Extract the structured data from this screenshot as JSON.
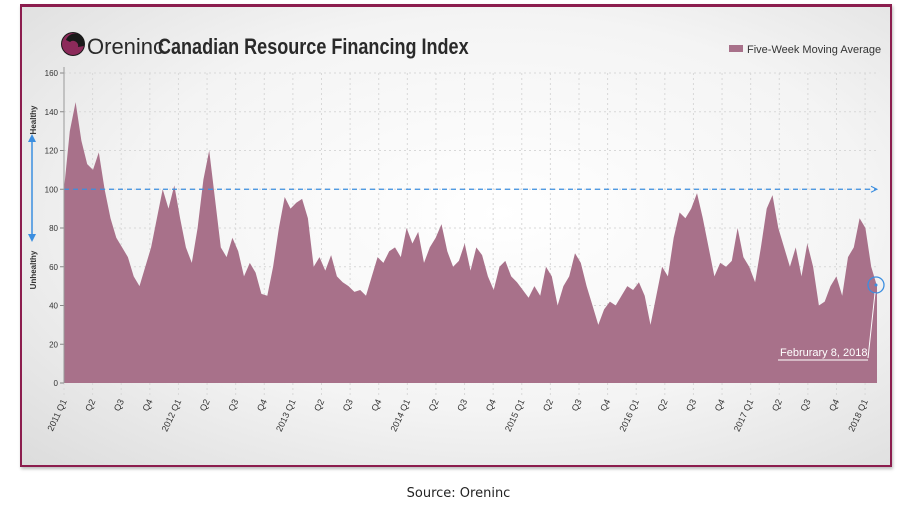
{
  "chart_data": {
    "type": "area",
    "title": "Canadian Resource Financing Index",
    "brand": "Oreninc",
    "legend": [
      "Five-Week Moving Average"
    ],
    "legend_position": "top-right",
    "ylim": [
      0,
      160
    ],
    "yticks": [
      0,
      20,
      40,
      60,
      80,
      100,
      120,
      140,
      160
    ],
    "y_zone_labels": {
      "upper": "Healthy",
      "lower": "Unhealthy"
    },
    "reference_line": 100,
    "x_range": [
      2011.0,
      2018.104
    ],
    "xtick_labels": [
      "2011 Q1",
      "Q2",
      "Q3",
      "Q4",
      "2012 Q1",
      "Q2",
      "Q3",
      "Q4",
      "2013 Q1",
      "Q2",
      "Q3",
      "Q4",
      "2014 Q1",
      "Q2",
      "Q3",
      "Q4",
      "2015 Q1",
      "Q2",
      "Q3",
      "Q4",
      "2016 Q1",
      "Q2",
      "Q3",
      "Q4",
      "2017 Q1",
      "Q2",
      "Q3",
      "Q4",
      "2018 Q1"
    ],
    "series": [
      {
        "name": "Five-Week Moving Average",
        "x_start": 2011.0,
        "x_end": 2018.104,
        "values": [
          100,
          130,
          145,
          125,
          113,
          110,
          119,
          100,
          85,
          75,
          70,
          65,
          55,
          50,
          60,
          70,
          85,
          100,
          90,
          102,
          85,
          70,
          62,
          80,
          105,
          120,
          95,
          70,
          65,
          75,
          68,
          55,
          62,
          57,
          46,
          45,
          60,
          80,
          96,
          90,
          93,
          95,
          85,
          60,
          65,
          58,
          66,
          55,
          52,
          50,
          47,
          48,
          45,
          55,
          65,
          62,
          68,
          70,
          65,
          80,
          72,
          78,
          62,
          70,
          75,
          82,
          68,
          60,
          63,
          72,
          58,
          70,
          66,
          55,
          48,
          60,
          63,
          55,
          52,
          48,
          44,
          50,
          45,
          60,
          55,
          40,
          50,
          55,
          67,
          62,
          50,
          40,
          30,
          38,
          42,
          40,
          45,
          50,
          48,
          52,
          45,
          30,
          45,
          60,
          55,
          75,
          88,
          85,
          90,
          98,
          85,
          70,
          55,
          62,
          60,
          63,
          80,
          65,
          60,
          52,
          70,
          90,
          97,
          80,
          70,
          60,
          70,
          55,
          72,
          60,
          40,
          42,
          50,
          55,
          45,
          65,
          70,
          85,
          80,
          60,
          50
        ]
      }
    ],
    "annotation": "Februrary 8, 2018",
    "colors": {
      "fill": "#a8718a",
      "reference": "#3b8ee0",
      "border": "#8c1d4e"
    }
  },
  "source": "Source: Oreninc"
}
